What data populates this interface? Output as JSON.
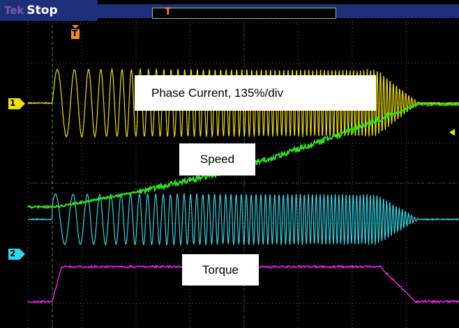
{
  "header": {
    "brand": "Tek",
    "status": "Stop"
  },
  "record": {
    "trigger_symbol": "T"
  },
  "trigger_marker": {
    "symbol": "T",
    "color": "#ff8a1c"
  },
  "channels": [
    {
      "number": "1",
      "color": "#f0e000"
    },
    {
      "number": "2",
      "color": "#2fd8e8"
    }
  ],
  "labels": {
    "phase_current": "Phase Current, 135%/div",
    "speed": "Speed",
    "torque": "Torque"
  },
  "colors": {
    "phase_current": "#f0e000",
    "speed": "#2fe21f",
    "channel2": "#2fd8e8",
    "torque": "#ff20ff",
    "grid": "#606060",
    "status_bar": "#1e2f7a"
  }
}
